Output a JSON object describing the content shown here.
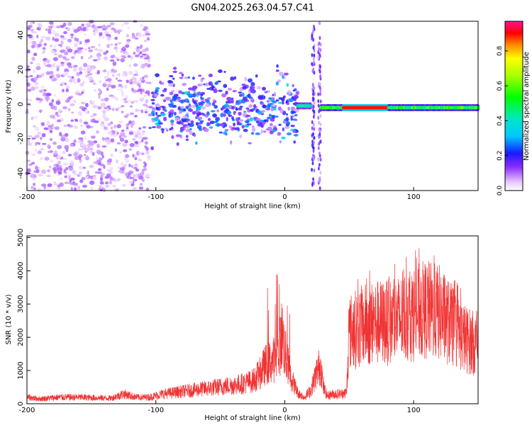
{
  "title": "GN04.2025.263.04.57.C41",
  "chart_data": [
    {
      "type": "heatmap",
      "xlabel": "Height of straight line (km)",
      "ylabel": "Frequency (Hz)",
      "xlim": [
        -200,
        150
      ],
      "ylim": [
        -50,
        48
      ],
      "x_ticks": [
        -200,
        -100,
        0,
        100
      ],
      "y_ticks": [
        -40,
        -20,
        0,
        20,
        40
      ],
      "colorbar": {
        "label": "Normalized spectral amplitude",
        "range": [
          0,
          0.97
        ],
        "ticks": [
          0,
          0.2,
          0.4,
          0.6,
          0.8
        ]
      },
      "features": [
        {
          "name": "broadband noise",
          "x_range": [
            -200,
            -105
          ],
          "freq_range": [
            -50,
            48
          ],
          "amplitude": 0.08
        },
        {
          "name": "band",
          "x_range": [
            -105,
            10
          ],
          "freq_range": [
            -25,
            20
          ],
          "amplitude": 0.2
        },
        {
          "name": "narrow tone",
          "x_range": [
            10,
            20
          ],
          "freq": -1,
          "amplitude": 0.45
        },
        {
          "name": "vertical streak",
          "x": 22,
          "freq_range": [
            -50,
            48
          ],
          "amplitude": 0.15
        },
        {
          "name": "vertical streak",
          "x": 27,
          "freq_range": [
            -50,
            48
          ],
          "amplitude": 0.12
        },
        {
          "name": "narrow tone",
          "x_range": [
            28,
            150
          ],
          "freq": -2,
          "amplitude": 0.55,
          "peak_range": [
            45,
            80
          ],
          "peak_amplitude": 0.92
        }
      ]
    },
    {
      "type": "line",
      "xlabel": "Height of straight line (km)",
      "ylabel": "SNR (10 * v/v)",
      "xlim": [
        -200,
        150
      ],
      "ylim": [
        0,
        5050
      ],
      "x_ticks": [
        -200,
        -100,
        0,
        100
      ],
      "y_ticks": [
        0,
        1000,
        2000,
        3000,
        4000,
        5000
      ],
      "color": "#f03232",
      "envelope_x": [
        -200,
        -190,
        -175,
        -160,
        -145,
        -135,
        -125,
        -115,
        -105,
        -95,
        -85,
        -75,
        -65,
        -55,
        -45,
        -35,
        -25,
        -20,
        -15,
        -10,
        -5,
        -2,
        0,
        5,
        10,
        15,
        20,
        25,
        28,
        30,
        33,
        38,
        45,
        48,
        50,
        60,
        70,
        80,
        90,
        100,
        110,
        120,
        130,
        140,
        145,
        150
      ],
      "envelope_y": [
        200,
        150,
        200,
        200,
        180,
        170,
        300,
        200,
        200,
        300,
        350,
        400,
        450,
        500,
        550,
        600,
        700,
        900,
        1200,
        1300,
        1500,
        2200,
        1600,
        800,
        350,
        200,
        400,
        1000,
        1200,
        500,
        250,
        300,
        300,
        350,
        2200,
        2400,
        2500,
        2500,
        2600,
        2800,
        2900,
        2800,
        2400,
        2000,
        1900,
        1800
      ]
    }
  ]
}
